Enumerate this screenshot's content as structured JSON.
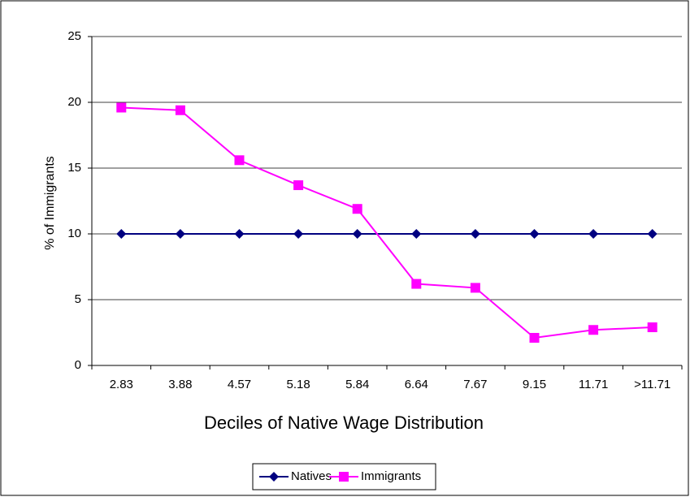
{
  "chart_data": {
    "type": "line",
    "x_label": "Deciles of Native Wage Distribution",
    "y_label": "% of Immigrants",
    "categories": [
      "2.83",
      "3.88",
      "4.57",
      "5.18",
      "5.84",
      "6.64",
      "7.67",
      "9.15",
      "11.71",
      ">11.71"
    ],
    "series": [
      {
        "name": "Natives",
        "color": "#000080",
        "marker": "diamond",
        "values": [
          10,
          10,
          10,
          10,
          10,
          10,
          10,
          10,
          10,
          10
        ]
      },
      {
        "name": "Immigrants",
        "color": "#ff00ff",
        "marker": "square",
        "values": [
          19.6,
          19.4,
          15.6,
          13.7,
          11.9,
          6.2,
          5.9,
          2.1,
          2.7,
          2.9
        ]
      }
    ],
    "ylim": [
      0,
      25
    ],
    "yticks": [
      0,
      5,
      10,
      15,
      20,
      25
    ],
    "grid": true,
    "legend": "bottom"
  }
}
